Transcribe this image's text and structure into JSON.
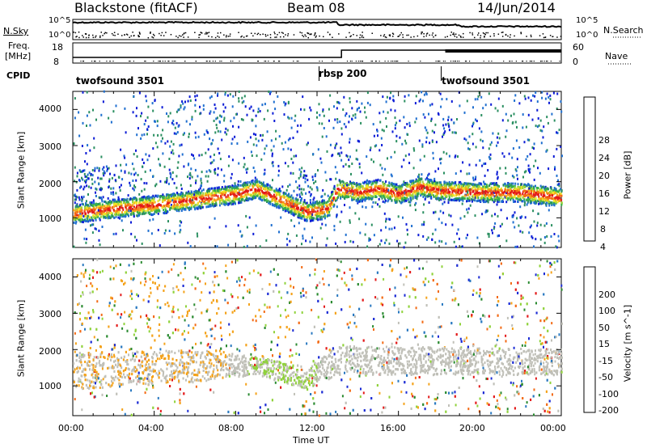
{
  "header": {
    "station": "Blackstone (fitACF)",
    "beam": "Beam 08",
    "date": "14/Jun/2014"
  },
  "top_panels": {
    "nsky_label": "N.Sky",
    "nsearch_label": "N.Search",
    "nsky_ticks": [
      "10^5",
      "10^0"
    ],
    "nsearch_ticks": [
      "10^5",
      "10^0"
    ],
    "freq_label": "Freq.",
    "freq_unit": "[MHz]",
    "freq_ticks": [
      "18",
      "8"
    ],
    "nave_label": "Nave",
    "nave_ticks": [
      "60",
      "0"
    ],
    "cpid_label": "CPID",
    "cpid_segments": [
      {
        "name": "twofsound 3501",
        "start_h": 0,
        "end_h": 12
      },
      {
        "name": "rbsp 200",
        "start_h": 12,
        "end_h": 18
      },
      {
        "name": "twofsound 3501",
        "start_h": 18,
        "end_h": 24
      }
    ]
  },
  "chart_data": [
    {
      "type": "heatmap",
      "title": "",
      "ylabel": "Slant Range [km]",
      "ylim": [
        180,
        4500
      ],
      "yticks": [
        "4000",
        "3000",
        "2000",
        "1000"
      ],
      "xlim": [
        0,
        24
      ],
      "colorbar_label": "Power [dB]",
      "colorbar_ticks": [
        "28",
        "24",
        "20",
        "16",
        "12",
        "8",
        "4"
      ],
      "colors": [
        "#0b1bd6",
        "#1f6fd0",
        "#2a8f60",
        "#37b04a",
        "#9fd43a",
        "#f2e526",
        "#f4a21a",
        "#f36a14",
        "#e31a1a"
      ],
      "echo_band": [
        {
          "t": 0.0,
          "r": 1100
        },
        {
          "t": 2.0,
          "r": 1250
        },
        {
          "t": 4.0,
          "r": 1350
        },
        {
          "t": 6.0,
          "r": 1500
        },
        {
          "t": 8.0,
          "r": 1650
        },
        {
          "t": 9.0,
          "r": 1800
        },
        {
          "t": 10.0,
          "r": 1550
        },
        {
          "t": 11.5,
          "r": 1150
        },
        {
          "t": 12.5,
          "r": 1250
        },
        {
          "t": 13.0,
          "r": 1800
        },
        {
          "t": 14.0,
          "r": 1700
        },
        {
          "t": 15.0,
          "r": 1800
        },
        {
          "t": 16.0,
          "r": 1650
        },
        {
          "t": 17.0,
          "r": 1850
        },
        {
          "t": 18.0,
          "r": 1750
        },
        {
          "t": 20.0,
          "r": 1700
        },
        {
          "t": 22.0,
          "r": 1700
        },
        {
          "t": 24.0,
          "r": 1550
        }
      ]
    },
    {
      "type": "heatmap",
      "title": "",
      "ylabel": "Slant Range [km]",
      "xlabel": "Time UT",
      "ylim": [
        180,
        4500
      ],
      "yticks": [
        "4000",
        "3000",
        "2000",
        "1000"
      ],
      "xlim": [
        0,
        24
      ],
      "xticks": [
        "00:00",
        "04:00",
        "08:00",
        "12:00",
        "16:00",
        "20:00",
        "00:00"
      ],
      "colorbar_label": "Velocity [m s^-1]",
      "colorbar_ticks": [
        "200",
        "100",
        "50",
        "15",
        "-15",
        "-50",
        "-100",
        "-200"
      ],
      "colors": [
        "#1b2bd4",
        "#2878c0",
        "#2a8a30",
        "#8fd23a",
        "#c0c0b8",
        "#f4a21a",
        "#f36a14",
        "#e31a1a"
      ],
      "ground_band": [
        {
          "t": 0.0,
          "lo": 900,
          "hi": 1900
        },
        {
          "t": 6.0,
          "lo": 1100,
          "hi": 2000
        },
        {
          "t": 9.0,
          "lo": 1300,
          "hi": 1800
        },
        {
          "t": 11.5,
          "lo": 900,
          "hi": 1500
        },
        {
          "t": 13.0,
          "lo": 1300,
          "hi": 2100
        },
        {
          "t": 24.0,
          "lo": 1300,
          "hi": 2000
        }
      ]
    }
  ]
}
